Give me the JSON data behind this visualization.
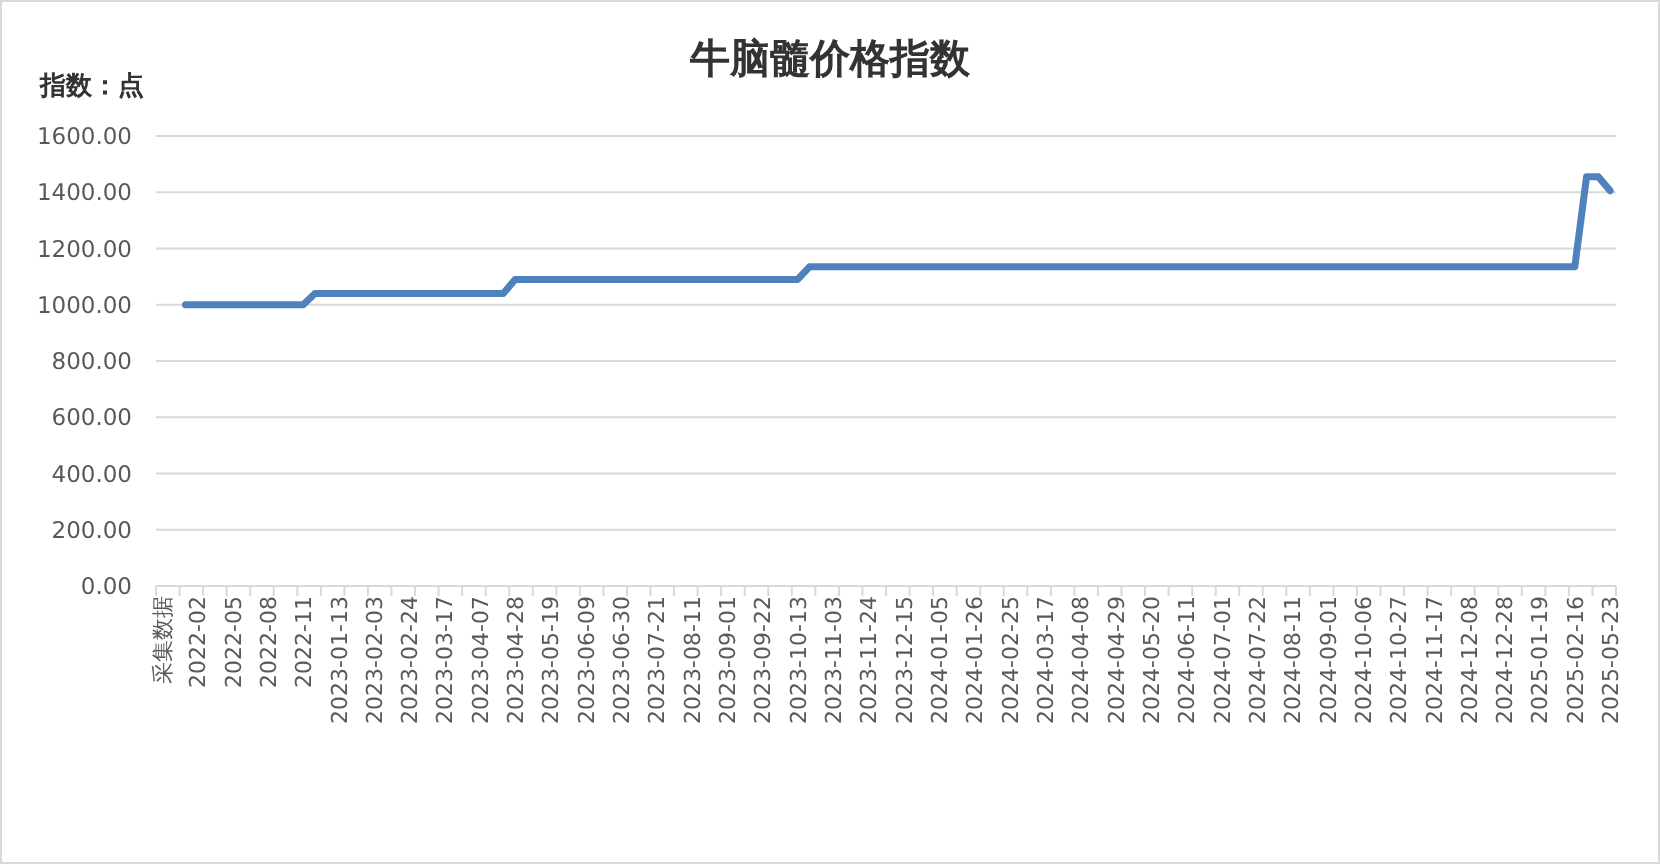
{
  "chart_data": {
    "type": "line",
    "title": "牛脑髓价格指数",
    "ylabel": "指数：点",
    "categories": [
      "采集数据",
      null,
      null,
      "2022-02",
      null,
      null,
      "2022-05",
      null,
      null,
      "2022-08",
      null,
      null,
      "2022-11",
      null,
      null,
      "2023-01-13",
      null,
      null,
      "2023-02-03",
      null,
      null,
      "2023-02-24",
      null,
      null,
      "2023-03-17",
      null,
      null,
      "2023-04-07",
      null,
      null,
      "2023-04-28",
      null,
      null,
      "2023-05-19",
      null,
      null,
      "2023-06-09",
      null,
      null,
      "2023-06-30",
      null,
      null,
      "2023-07-21",
      null,
      null,
      "2023-08-11",
      null,
      null,
      "2023-09-01",
      null,
      null,
      "2023-09-22",
      null,
      null,
      "2023-10-13",
      null,
      null,
      "2023-11-03",
      null,
      null,
      "2023-11-24",
      null,
      null,
      "2023-12-15",
      null,
      null,
      "2024-01-05",
      null,
      null,
      "2024-01-26",
      null,
      null,
      "2024-02-25",
      null,
      null,
      "2024-03-17",
      null,
      null,
      "2024-04-08",
      null,
      null,
      "2024-04-29",
      null,
      null,
      "2024-05-20",
      null,
      null,
      "2024-06-11",
      null,
      null,
      "2024-07-01",
      null,
      null,
      "2024-07-22",
      null,
      null,
      "2024-08-11",
      null,
      null,
      "2024-09-01",
      null,
      null,
      "2024-10-06",
      null,
      null,
      "2024-10-27",
      null,
      null,
      "2024-11-17",
      null,
      null,
      "2024-12-08",
      null,
      null,
      "2024-12-28",
      null,
      null,
      "2025-01-19",
      null,
      null,
      "2025-02-16",
      null,
      null,
      "2025-05-23"
    ],
    "series": [
      {
        "color": "#4f81bd",
        "values": [
          null,
          null,
          1000,
          1000,
          1000,
          1000,
          1000,
          1000,
          1000,
          1000,
          1000,
          1000,
          1000,
          1040,
          1040,
          1040,
          1040,
          1040,
          1040,
          1040,
          1040,
          1040,
          1040,
          1040,
          1040,
          1040,
          1040,
          1040,
          1040,
          1040,
          1090,
          1090,
          1090,
          1090,
          1090,
          1090,
          1090,
          1090,
          1090,
          1090,
          1090,
          1090,
          1090,
          1090,
          1090,
          1090,
          1090,
          1090,
          1090,
          1090,
          1090,
          1090,
          1090,
          1090,
          1090,
          1135,
          1135,
          1135,
          1135,
          1135,
          1135,
          1135,
          1135,
          1135,
          1135,
          1135,
          1135,
          1135,
          1135,
          1135,
          1135,
          1135,
          1135,
          1135,
          1135,
          1135,
          1135,
          1135,
          1135,
          1135,
          1135,
          1135,
          1135,
          1135,
          1135,
          1135,
          1135,
          1135,
          1135,
          1135,
          1135,
          1135,
          1135,
          1135,
          1135,
          1135,
          1135,
          1135,
          1135,
          1135,
          1135,
          1135,
          1135,
          1135,
          1135,
          1135,
          1135,
          1135,
          1135,
          1135,
          1135,
          1135,
          1135,
          1135,
          1135,
          1135,
          1135,
          1135,
          1135,
          1135,
          1135,
          1455,
          1455,
          1405
        ]
      }
    ],
    "ylim": [
      0,
      1600
    ],
    "yticks": [
      {
        "value": 0,
        "label": "0.00"
      },
      {
        "value": 200,
        "label": "200.00"
      },
      {
        "value": 400,
        "label": "400.00"
      },
      {
        "value": 600,
        "label": "600.00"
      },
      {
        "value": 800,
        "label": "800.00"
      },
      {
        "value": 1000,
        "label": "1000.00"
      },
      {
        "value": 1200,
        "label": "1200.00"
      },
      {
        "value": 1400,
        "label": "1400.00"
      },
      {
        "value": 1600,
        "label": "1600.00"
      }
    ],
    "grid": "y"
  }
}
